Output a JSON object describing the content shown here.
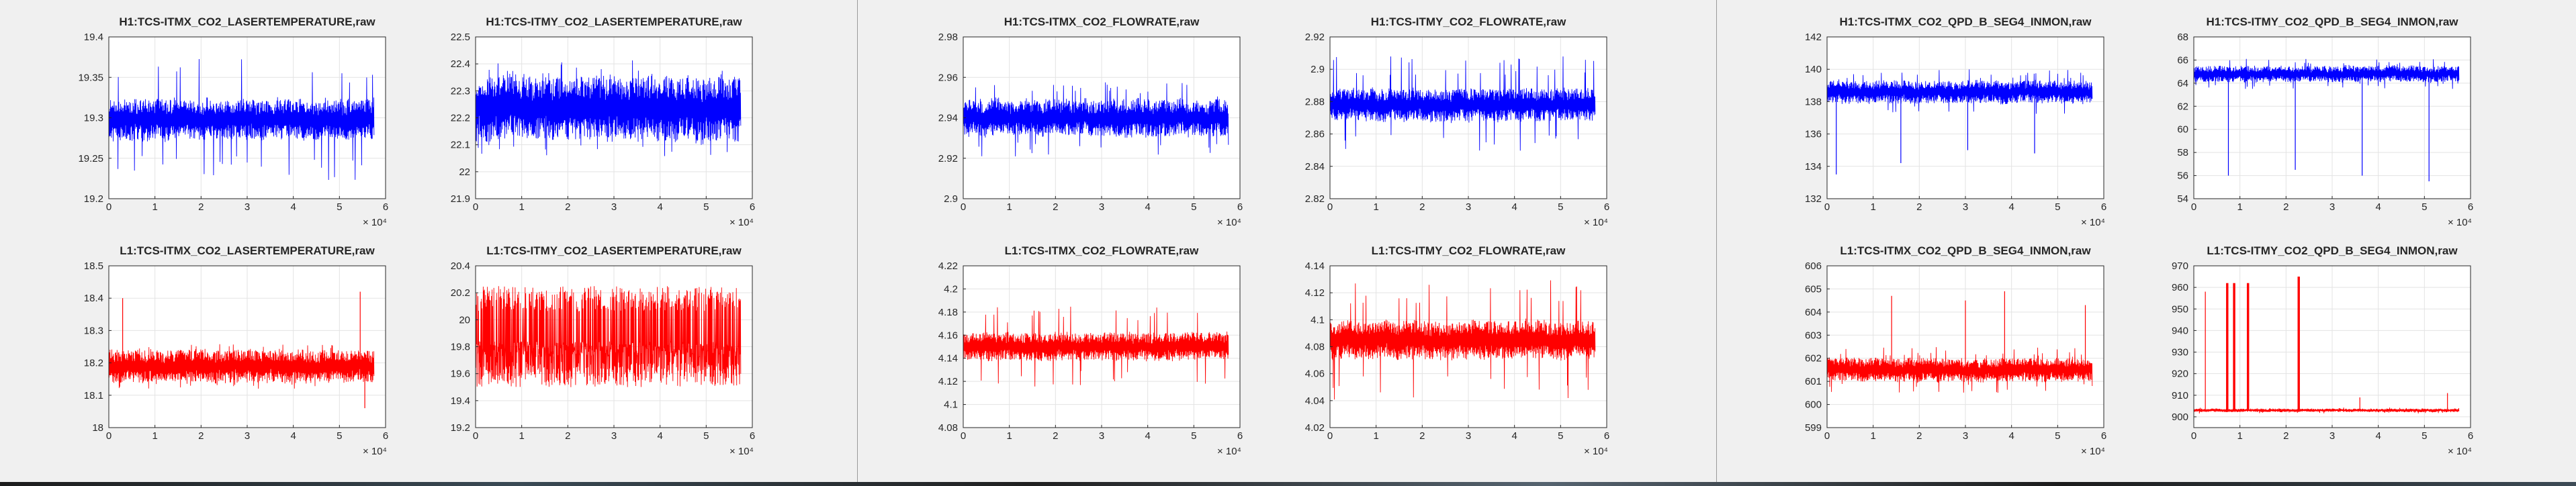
{
  "window": {
    "background": "#f0f0f0"
  },
  "figures": [
    {
      "title": "H1:TCS-ITMX_CO2_LASERTEMPERATURE,raw"
    },
    {
      "title": "H1:TCS-ITMY_CO2_LASERTEMPERATURE,raw"
    },
    {
      "title": "H1:TCS-ITMX_CO2_FLOWRATE,raw"
    },
    {
      "title": "H1:TCS-ITMY_CO2_FLOWRATE,raw"
    },
    {
      "title": "H1:TCS-ITMX_CO2_QPD_B_SEG4_INMON,raw"
    },
    {
      "title": "H1:TCS-ITMY_CO2_QPD_B_SEG4_INMON,raw"
    },
    {
      "title": "L1:TCS-ITMX_CO2_LASERTEMPERATURE,raw"
    },
    {
      "title": "L1:TCS-ITMY_CO2_LASERTEMPERATURE,raw"
    },
    {
      "title": "L1:TCS-ITMX_CO2_FLOWRATE,raw"
    },
    {
      "title": "L1:TCS-ITMY_CO2_FLOWRATE,raw"
    },
    {
      "title": "L1:TCS-ITMX_CO2_QPD_B_SEG4_INMON,raw"
    },
    {
      "title": "L1:TCS-ITMY_CO2_QPD_B_SEG4_INMON,raw"
    }
  ],
  "chart_data": [
    {
      "type": "line",
      "title": "H1:TCS-ITMX_CO2_LASERTEMPERATURE,raw",
      "color": "#0000ff",
      "xlim": [
        0,
        60000
      ],
      "xticks": [
        "0",
        "1",
        "2",
        "3",
        "4",
        "5",
        "6"
      ],
      "x_exponent": "× 10⁴",
      "ylim": [
        19.2,
        19.4
      ],
      "yticks": [
        "19.2",
        "19.25",
        "19.3",
        "19.35",
        "19.4"
      ],
      "x_end": 57500,
      "series_profile": {
        "mean": 19.298,
        "noise_amplitude": 0.025,
        "peak_amplitude": 0.075,
        "spikes": []
      },
      "grid": true
    },
    {
      "type": "line",
      "title": "H1:TCS-ITMY_CO2_LASERTEMPERATURE,raw",
      "color": "#0000ff",
      "xlim": [
        0,
        60000
      ],
      "xticks": [
        "0",
        "1",
        "2",
        "3",
        "4",
        "5",
        "6"
      ],
      "x_exponent": "× 10⁴",
      "ylim": [
        21.9,
        22.5
      ],
      "yticks": [
        "21.9",
        "22",
        "22.1",
        "22.2",
        "22.3",
        "22.4",
        "22.5"
      ],
      "x_end": 57500,
      "series_profile": {
        "mean": 22.235,
        "noise_amplitude": 0.12,
        "peak_amplitude": 0.18,
        "spikes": []
      },
      "grid": true
    },
    {
      "type": "line",
      "title": "H1:TCS-ITMX_CO2_FLOWRATE,raw",
      "color": "#0000ff",
      "xlim": [
        0,
        60000
      ],
      "xticks": [
        "0",
        "1",
        "2",
        "3",
        "4",
        "5",
        "6"
      ],
      "x_exponent": "× 10⁴",
      "ylim": [
        2.9,
        2.98
      ],
      "yticks": [
        "2.9",
        "2.92",
        "2.94",
        "2.96",
        "2.98"
      ],
      "x_end": 57500,
      "series_profile": {
        "mean": 2.94,
        "noise_amplitude": 0.009,
        "peak_amplitude": 0.02,
        "spikes": []
      },
      "grid": true
    },
    {
      "type": "line",
      "title": "H1:TCS-ITMY_CO2_FLOWRATE,raw",
      "color": "#0000ff",
      "xlim": [
        0,
        60000
      ],
      "xticks": [
        "0",
        "1",
        "2",
        "3",
        "4",
        "5",
        "6"
      ],
      "x_exponent": "× 10⁴",
      "ylim": [
        2.82,
        2.92
      ],
      "yticks": [
        "2.82",
        "2.84",
        "2.86",
        "2.88",
        "2.9",
        "2.92"
      ],
      "x_end": 57500,
      "series_profile": {
        "mean": 2.878,
        "noise_amplitude": 0.01,
        "peak_amplitude": 0.03,
        "spikes": []
      },
      "grid": true
    },
    {
      "type": "line",
      "title": "H1:TCS-ITMX_CO2_QPD_B_SEG4_INMON,raw",
      "color": "#0000ff",
      "xlim": [
        0,
        60000
      ],
      "xticks": [
        "0",
        "1",
        "2",
        "3",
        "4",
        "5",
        "6"
      ],
      "x_exponent": "× 10⁴",
      "ylim": [
        132,
        142
      ],
      "yticks": [
        "132",
        "134",
        "136",
        "138",
        "140",
        "142"
      ],
      "x_end": 57500,
      "series_profile": {
        "mean": 138.6,
        "noise_amplitude": 0.7,
        "peak_amplitude": 1.4,
        "spikes": [
          {
            "x": 2000,
            "y": 133.5
          },
          {
            "x": 16000,
            "y": 134.2
          },
          {
            "x": 30500,
            "y": 135
          },
          {
            "x": 45000,
            "y": 134.8
          }
        ]
      },
      "grid": true
    },
    {
      "type": "line",
      "title": "H1:TCS-ITMY_CO2_QPD_B_SEG4_INMON,raw",
      "color": "#0000ff",
      "xlim": [
        0,
        60000
      ],
      "xticks": [
        "0",
        "1",
        "2",
        "3",
        "4",
        "5",
        "6"
      ],
      "x_exponent": "× 10⁴",
      "ylim": [
        54,
        68
      ],
      "yticks": [
        "54",
        "56",
        "58",
        "60",
        "62",
        "64",
        "66",
        "68"
      ],
      "x_end": 57500,
      "series_profile": {
        "mean": 64.8,
        "noise_amplitude": 0.7,
        "peak_amplitude": 1.3,
        "spikes": [
          {
            "x": 7500,
            "y": 56
          },
          {
            "x": 22000,
            "y": 56.5
          },
          {
            "x": 36500,
            "y": 56
          },
          {
            "x": 51000,
            "y": 55.5
          }
        ]
      },
      "grid": true
    },
    {
      "type": "line",
      "title": "L1:TCS-ITMX_CO2_LASERTEMPERATURE,raw",
      "color": "#ff0000",
      "xlim": [
        0,
        60000
      ],
      "xticks": [
        "0",
        "1",
        "2",
        "3",
        "4",
        "5",
        "6"
      ],
      "x_exponent": "× 10⁴",
      "ylim": [
        18,
        18.5
      ],
      "yticks": [
        "18",
        "18.1",
        "18.2",
        "18.3",
        "18.4",
        "18.5"
      ],
      "x_end": 57500,
      "series_profile": {
        "mean": 18.19,
        "noise_amplitude": 0.05,
        "peak_amplitude": 0.07,
        "spikes": [
          {
            "x": 3000,
            "y": 18.4
          },
          {
            "x": 54500,
            "y": 18.42
          },
          {
            "x": 55500,
            "y": 18.06
          }
        ]
      },
      "grid": true
    },
    {
      "type": "line",
      "title": "L1:TCS-ITMY_CO2_LASERTEMPERATURE,raw",
      "color": "#ff0000",
      "xlim": [
        0,
        60000
      ],
      "xticks": [
        "0",
        "1",
        "2",
        "3",
        "4",
        "5",
        "6"
      ],
      "x_exponent": "× 10⁴",
      "ylim": [
        19.2,
        20.4
      ],
      "yticks": [
        "19.2",
        "19.4",
        "19.6",
        "19.8",
        "20",
        "20.2",
        "20.4"
      ],
      "x_end": 57500,
      "series_profile": {
        "mean": 19.78,
        "noise_amplitude": 0.12,
        "peak_amplitude": 0.3,
        "band": [
          19.5,
          20.25
        ],
        "spikes": []
      },
      "grid": true
    },
    {
      "type": "line",
      "title": "L1:TCS-ITMX_CO2_FLOWRATE,raw",
      "color": "#ff0000",
      "xlim": [
        0,
        60000
      ],
      "xticks": [
        "0",
        "1",
        "2",
        "3",
        "4",
        "5",
        "6"
      ],
      "x_exponent": "× 10⁴",
      "ylim": [
        4.08,
        4.22
      ],
      "yticks": [
        "4.08",
        "4.1",
        "4.12",
        "4.14",
        "4.16",
        "4.18",
        "4.2",
        "4.22"
      ],
      "x_end": 57500,
      "series_profile": {
        "mean": 4.15,
        "noise_amplitude": 0.012,
        "peak_amplitude": 0.035,
        "spikes": []
      },
      "grid": true
    },
    {
      "type": "line",
      "title": "L1:TCS-ITMY_CO2_FLOWRATE,raw",
      "color": "#ff0000",
      "xlim": [
        0,
        60000
      ],
      "xticks": [
        "0",
        "1",
        "2",
        "3",
        "4",
        "5",
        "6"
      ],
      "x_exponent": "× 10⁴",
      "ylim": [
        4.02,
        4.14
      ],
      "yticks": [
        "4.02",
        "4.04",
        "4.06",
        "4.08",
        "4.1",
        "4.12",
        "4.14"
      ],
      "x_end": 57500,
      "series_profile": {
        "mean": 4.085,
        "noise_amplitude": 0.014,
        "peak_amplitude": 0.045,
        "spikes": []
      },
      "grid": true
    },
    {
      "type": "line",
      "title": "L1:TCS-ITMX_CO2_QPD_B_SEG4_INMON,raw",
      "color": "#ff0000",
      "xlim": [
        0,
        60000
      ],
      "xticks": [
        "0",
        "1",
        "2",
        "3",
        "4",
        "5",
        "6"
      ],
      "x_exponent": "× 10⁴",
      "ylim": [
        599,
        606
      ],
      "yticks": [
        "599",
        "600",
        "601",
        "602",
        "603",
        "604",
        "605",
        "606"
      ],
      "x_end": 57500,
      "series_profile": {
        "mean": 601.5,
        "noise_amplitude": 0.5,
        "peak_amplitude": 1.0,
        "spikes": [
          {
            "x": 14000,
            "y": 604.7
          },
          {
            "x": 30000,
            "y": 604.5
          },
          {
            "x": 38500,
            "y": 604.9
          },
          {
            "x": 56000,
            "y": 604.3
          }
        ]
      },
      "grid": true
    },
    {
      "type": "line",
      "title": "L1:TCS-ITMY_CO2_QPD_B_SEG4_INMON,raw",
      "color": "#ff0000",
      "xlim": [
        0,
        60000
      ],
      "xticks": [
        "0",
        "1",
        "2",
        "3",
        "4",
        "5",
        "6"
      ],
      "x_exponent": "× 10⁴",
      "ylim": [
        895,
        970
      ],
      "yticks": [
        "900",
        "910",
        "920",
        "930",
        "940",
        "950",
        "960",
        "970"
      ],
      "x_end": 57500,
      "series_profile": {
        "mean": 903,
        "noise_amplitude": 0.8,
        "peak_amplitude": 1.5,
        "plateaus": [
          {
            "x0": 7000,
            "x1": 7500,
            "y": 962
          },
          {
            "x0": 8500,
            "x1": 9000,
            "y": 962
          },
          {
            "x0": 11500,
            "x1": 12000,
            "y": 962
          },
          {
            "x0": 22500,
            "x1": 23000,
            "y": 965
          }
        ],
        "spikes": [
          {
            "x": 36000,
            "y": 909
          },
          {
            "x": 55000,
            "y": 911
          },
          {
            "x": 2500,
            "y": 958
          }
        ]
      },
      "grid": true
    }
  ]
}
